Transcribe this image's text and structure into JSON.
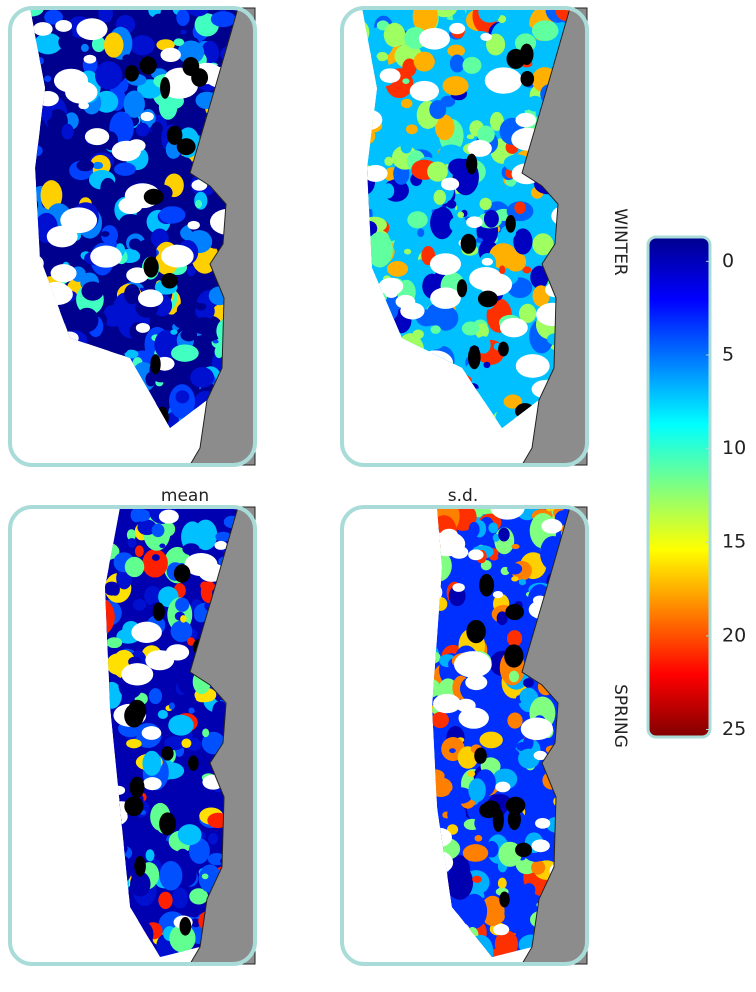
{
  "row_labels": [
    "WINTER",
    "SPRING"
  ],
  "column_labels": [
    "mean",
    "s.d."
  ],
  "chart_data": {
    "type": "colorbar",
    "colormap": "jet",
    "reversed": true,
    "ylim": [
      -1.3,
      25.4
    ],
    "yticks": [
      0,
      5,
      10,
      15,
      20,
      25
    ]
  }
}
